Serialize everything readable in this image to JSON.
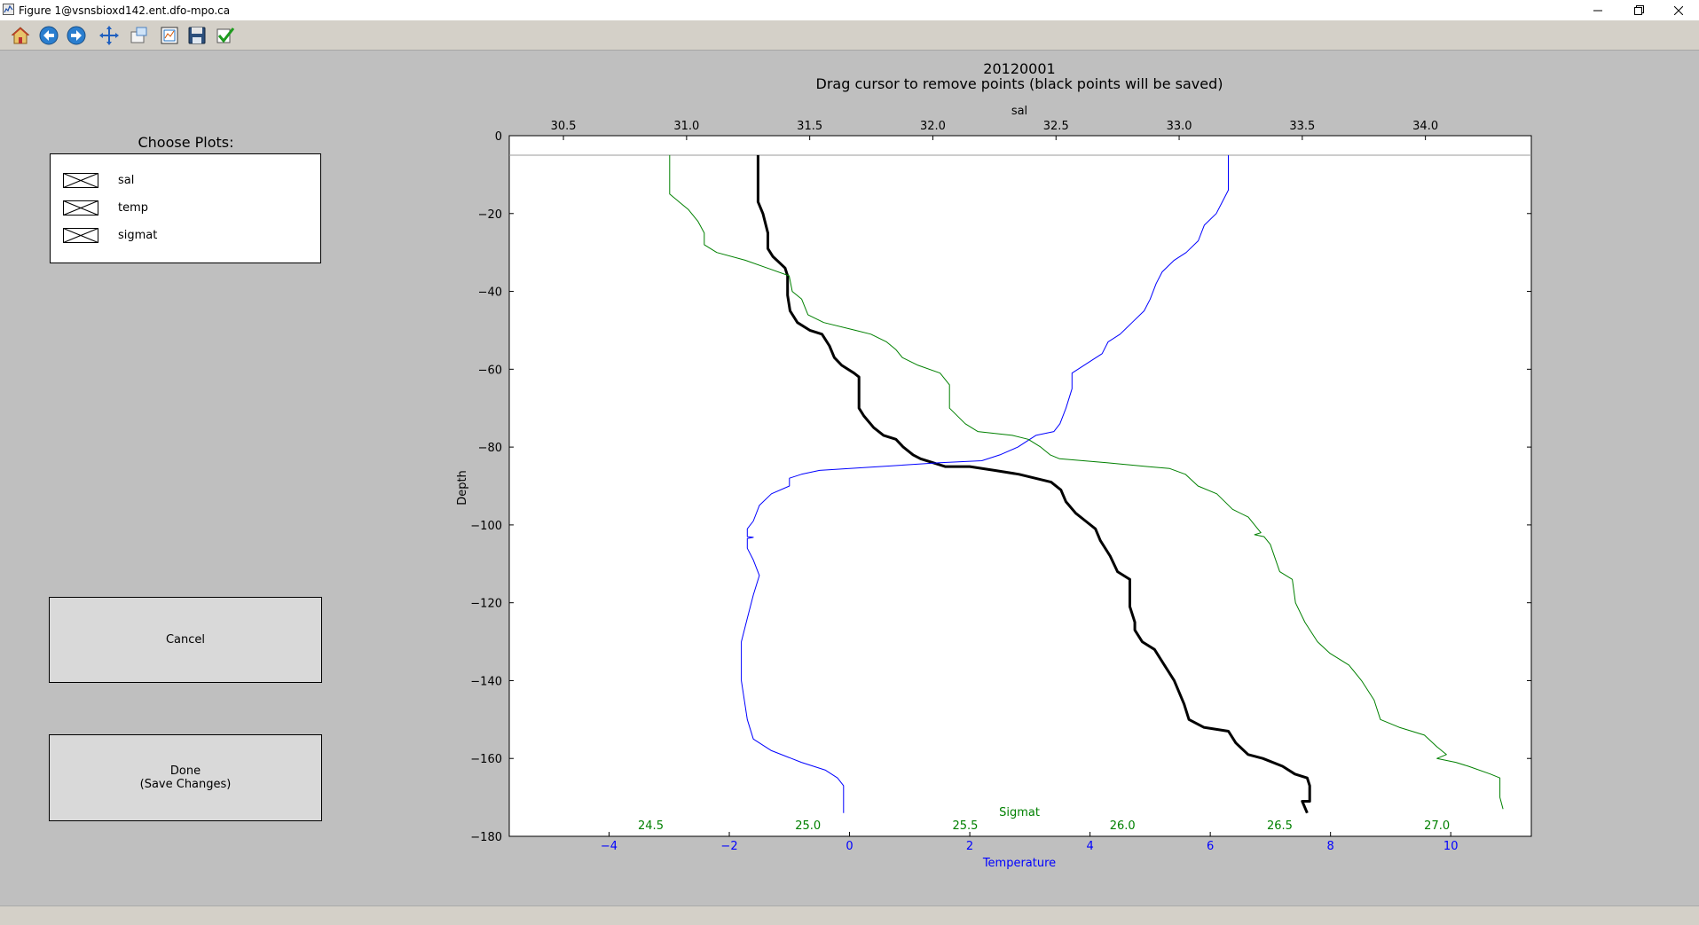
{
  "window": {
    "title": "Figure 1@vsnsbioxd142.ent.dfo-mpo.ca",
    "app_icon": "matplotlib-figure-icon",
    "controls": [
      "minimize-icon",
      "restore-icon",
      "close-icon"
    ]
  },
  "toolbar": {
    "buttons": [
      {
        "name": "home",
        "icon": "home-icon"
      },
      {
        "name": "back",
        "icon": "back-arrow-icon"
      },
      {
        "name": "forward",
        "icon": "forward-arrow-icon"
      },
      {
        "name": "pan",
        "icon": "pan-move-icon"
      },
      {
        "name": "zoom",
        "icon": "zoom-rect-icon"
      },
      {
        "name": "configure-subplots",
        "icon": "subplots-icon"
      },
      {
        "name": "save",
        "icon": "floppy-disk-icon"
      },
      {
        "name": "edit",
        "icon": "checkmark-icon"
      }
    ]
  },
  "chooser": {
    "title": "Choose Plots:",
    "items": [
      {
        "label": "sal",
        "checked": true
      },
      {
        "label": "temp",
        "checked": true
      },
      {
        "label": "sigmat",
        "checked": true
      }
    ]
  },
  "buttons": {
    "cancel": "Cancel",
    "done": "Done\n(Save Changes)"
  },
  "colors": {
    "temperature": "#0000ff",
    "sigmat": "#008000",
    "salinity": "#000000",
    "background": "#bfbfbf"
  },
  "chart_data": {
    "type": "line",
    "title": "20120001",
    "subtitle": "Drag cursor to remove points (black points will be saved)",
    "ylabel": "Depth",
    "ylim": [
      -180,
      0
    ],
    "yticks": [
      0,
      -20,
      -40,
      -60,
      -80,
      -100,
      -120,
      -140,
      -160,
      -180
    ],
    "grid": false,
    "axes": {
      "sal": {
        "label": "sal",
        "position": "top",
        "lim": [
          30.28,
          34.43
        ],
        "ticks": [
          30.5,
          31.0,
          31.5,
          32.0,
          32.5,
          33.0,
          33.5,
          34.0
        ],
        "tick_labels": [
          "30.5",
          "31.0",
          "31.5",
          "32.0",
          "32.5",
          "33.0",
          "33.5",
          "34.0"
        ],
        "color": "#000000"
      },
      "temperature": {
        "label": "Temperature",
        "position": "bottom",
        "lim": [
          -5.66,
          11.34
        ],
        "ticks": [
          -4,
          -2,
          0,
          2,
          4,
          6,
          8,
          10
        ],
        "tick_labels": [
          "−4",
          "−2",
          "0",
          "2",
          "4",
          "6",
          "8",
          "10"
        ],
        "color": "#0000ff"
      },
      "sigmat": {
        "label": "Sigmat",
        "position": "bottom-inside",
        "lim": [
          24.05,
          27.3
        ],
        "ticks": [
          24.5,
          25.0,
          25.5,
          26.0,
          26.5,
          27.0
        ],
        "tick_labels": [
          "24.5",
          "25.0",
          "25.5",
          "26.0",
          "26.5",
          "27.0"
        ],
        "color": "#008000"
      }
    },
    "reference_depth": -5,
    "series": [
      {
        "name": "sal",
        "axis": "sal",
        "color": "#000000",
        "points": [
          [
            31.29,
            -5
          ],
          [
            31.29,
            -15
          ],
          [
            31.29,
            -17
          ],
          [
            31.31,
            -20
          ],
          [
            31.33,
            -25
          ],
          [
            31.33,
            -29
          ],
          [
            31.35,
            -31
          ],
          [
            31.4,
            -34
          ],
          [
            31.41,
            -36
          ],
          [
            31.41,
            -41
          ],
          [
            31.42,
            -45
          ],
          [
            31.45,
            -48
          ],
          [
            31.5,
            -50
          ],
          [
            31.55,
            -51
          ],
          [
            31.58,
            -54
          ],
          [
            31.6,
            -57
          ],
          [
            31.63,
            -59
          ],
          [
            31.68,
            -61
          ],
          [
            31.7,
            -62
          ],
          [
            31.7,
            -70
          ],
          [
            31.72,
            -72
          ],
          [
            31.76,
            -75
          ],
          [
            31.8,
            -77
          ],
          [
            31.85,
            -78
          ],
          [
            31.88,
            -80
          ],
          [
            31.92,
            -82
          ],
          [
            31.95,
            -83
          ],
          [
            32.0,
            -84
          ],
          [
            32.05,
            -85
          ],
          [
            32.15,
            -85
          ],
          [
            32.25,
            -86
          ],
          [
            32.35,
            -87
          ],
          [
            32.48,
            -89
          ],
          [
            32.52,
            -91
          ],
          [
            32.54,
            -94
          ],
          [
            32.58,
            -97
          ],
          [
            32.62,
            -99
          ],
          [
            32.66,
            -101
          ],
          [
            32.68,
            -104
          ],
          [
            32.72,
            -108
          ],
          [
            32.75,
            -112
          ],
          [
            32.8,
            -114
          ],
          [
            32.8,
            -121
          ],
          [
            32.82,
            -125
          ],
          [
            32.82,
            -127
          ],
          [
            32.85,
            -130
          ],
          [
            32.9,
            -132
          ],
          [
            32.94,
            -136
          ],
          [
            32.98,
            -140
          ],
          [
            33.02,
            -146
          ],
          [
            33.04,
            -150
          ],
          [
            33.1,
            -152
          ],
          [
            33.2,
            -153
          ],
          [
            33.23,
            -156
          ],
          [
            33.28,
            -159
          ],
          [
            33.34,
            -160
          ],
          [
            33.42,
            -162
          ],
          [
            33.47,
            -164
          ],
          [
            33.52,
            -165
          ],
          [
            33.53,
            -167
          ],
          [
            33.53,
            -171
          ],
          [
            33.5,
            -171
          ],
          [
            33.52,
            -174
          ]
        ]
      },
      {
        "name": "temp",
        "axis": "temperature",
        "color": "#0000ff",
        "points": [
          [
            6.3,
            -5
          ],
          [
            6.3,
            -14
          ],
          [
            6.2,
            -17
          ],
          [
            6.1,
            -20
          ],
          [
            5.9,
            -23
          ],
          [
            5.8,
            -27
          ],
          [
            5.6,
            -30
          ],
          [
            5.4,
            -32
          ],
          [
            5.2,
            -35
          ],
          [
            5.1,
            -38
          ],
          [
            5.0,
            -42
          ],
          [
            4.9,
            -45
          ],
          [
            4.7,
            -48
          ],
          [
            4.5,
            -51
          ],
          [
            4.3,
            -53
          ],
          [
            4.2,
            -56
          ],
          [
            4.0,
            -58
          ],
          [
            3.8,
            -60
          ],
          [
            3.7,
            -61
          ],
          [
            3.7,
            -65
          ],
          [
            3.6,
            -70
          ],
          [
            3.5,
            -74
          ],
          [
            3.4,
            -76
          ],
          [
            3.1,
            -77
          ],
          [
            3.0,
            -78
          ],
          [
            2.8,
            -80
          ],
          [
            2.5,
            -82
          ],
          [
            2.2,
            -83.5
          ],
          [
            1.5,
            -84
          ],
          [
            0.5,
            -85
          ],
          [
            -0.5,
            -86
          ],
          [
            -0.8,
            -87
          ],
          [
            -1.0,
            -88
          ],
          [
            -1.0,
            -90
          ],
          [
            -1.3,
            -92
          ],
          [
            -1.5,
            -95
          ],
          [
            -1.6,
            -99
          ],
          [
            -1.7,
            -101
          ],
          [
            -1.7,
            -103
          ],
          [
            -1.6,
            -103.2
          ],
          [
            -1.7,
            -103.5
          ],
          [
            -1.7,
            -106
          ],
          [
            -1.6,
            -109
          ],
          [
            -1.5,
            -113
          ],
          [
            -1.6,
            -118
          ],
          [
            -1.7,
            -124
          ],
          [
            -1.8,
            -130
          ],
          [
            -1.8,
            -140
          ],
          [
            -1.7,
            -150
          ],
          [
            -1.6,
            -155
          ],
          [
            -1.3,
            -158
          ],
          [
            -0.8,
            -161
          ],
          [
            -0.4,
            -163
          ],
          [
            -0.2,
            -165
          ],
          [
            -0.1,
            -167
          ],
          [
            -0.1,
            -171
          ],
          [
            -0.1,
            -174
          ]
        ]
      },
      {
        "name": "sigmat",
        "axis": "sigmat",
        "color": "#008000",
        "points": [
          [
            24.56,
            -5
          ],
          [
            24.56,
            -15
          ],
          [
            24.59,
            -17
          ],
          [
            24.62,
            -19
          ],
          [
            24.65,
            -22
          ],
          [
            24.67,
            -25
          ],
          [
            24.67,
            -28
          ],
          [
            24.71,
            -30
          ],
          [
            24.8,
            -32
          ],
          [
            24.87,
            -34
          ],
          [
            24.94,
            -36
          ],
          [
            24.95,
            -40
          ],
          [
            24.98,
            -42
          ],
          [
            25.0,
            -46
          ],
          [
            25.05,
            -48
          ],
          [
            25.15,
            -50
          ],
          [
            25.2,
            -51
          ],
          [
            25.25,
            -53
          ],
          [
            25.28,
            -55
          ],
          [
            25.3,
            -57
          ],
          [
            25.35,
            -59
          ],
          [
            25.42,
            -61
          ],
          [
            25.45,
            -64
          ],
          [
            25.45,
            -70
          ],
          [
            25.5,
            -74
          ],
          [
            25.54,
            -76
          ],
          [
            25.65,
            -77
          ],
          [
            25.7,
            -78
          ],
          [
            25.74,
            -80
          ],
          [
            25.77,
            -82
          ],
          [
            25.8,
            -83
          ],
          [
            25.95,
            -84
          ],
          [
            26.08,
            -85
          ],
          [
            26.15,
            -85.5
          ],
          [
            26.2,
            -87
          ],
          [
            26.24,
            -90
          ],
          [
            26.3,
            -92
          ],
          [
            26.35,
            -96
          ],
          [
            26.4,
            -98
          ],
          [
            26.42,
            -100
          ],
          [
            26.44,
            -102
          ],
          [
            26.42,
            -102.5
          ],
          [
            26.45,
            -103
          ],
          [
            26.47,
            -105
          ],
          [
            26.5,
            -112
          ],
          [
            26.54,
            -114
          ],
          [
            26.55,
            -120
          ],
          [
            26.58,
            -125
          ],
          [
            26.62,
            -130
          ],
          [
            26.66,
            -133
          ],
          [
            26.72,
            -136
          ],
          [
            26.76,
            -140
          ],
          [
            26.8,
            -145
          ],
          [
            26.82,
            -150
          ],
          [
            26.88,
            -152
          ],
          [
            26.96,
            -154
          ],
          [
            27.0,
            -157
          ],
          [
            27.03,
            -159
          ],
          [
            27.0,
            -160
          ],
          [
            27.06,
            -161
          ],
          [
            27.1,
            -162
          ],
          [
            27.17,
            -164
          ],
          [
            27.2,
            -165
          ],
          [
            27.2,
            -170
          ],
          [
            27.21,
            -173
          ]
        ]
      }
    ]
  }
}
